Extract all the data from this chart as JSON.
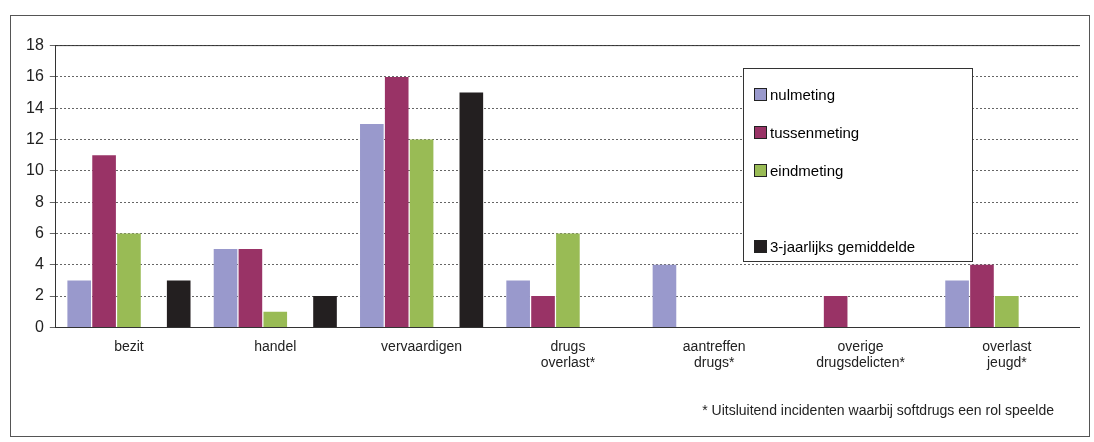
{
  "chart_data": {
    "type": "bar",
    "categories": [
      "bezit",
      "handel",
      "vervaardigen",
      "drugs overlast*",
      "aantreffen drugs*",
      "overige drugsdelicten*",
      "overlast jeugd*"
    ],
    "series": [
      {
        "name": "nulmeting",
        "color": "#9999cc",
        "values": [
          3,
          5,
          13,
          3,
          4,
          null,
          3
        ]
      },
      {
        "name": "tussenmeting",
        "color": "#993366",
        "values": [
          11,
          5,
          16,
          2,
          null,
          2,
          4
        ]
      },
      {
        "name": "eindmeting",
        "color": "#99bb55",
        "values": [
          6,
          1,
          12,
          6,
          null,
          null,
          2
        ]
      },
      {
        "name": "3-jaarlijks gemiddelde",
        "color": "#231f20",
        "values": [
          3,
          2,
          15,
          null,
          null,
          null,
          null
        ]
      }
    ],
    "ylim": [
      0,
      18
    ],
    "yticks": [
      0,
      2,
      4,
      6,
      8,
      10,
      12,
      14,
      16,
      18
    ],
    "grid": "y",
    "legend": "top right",
    "annotations": [
      "* Uitsluitend incidenten waarbij softdrugs een rol speelde"
    ]
  }
}
